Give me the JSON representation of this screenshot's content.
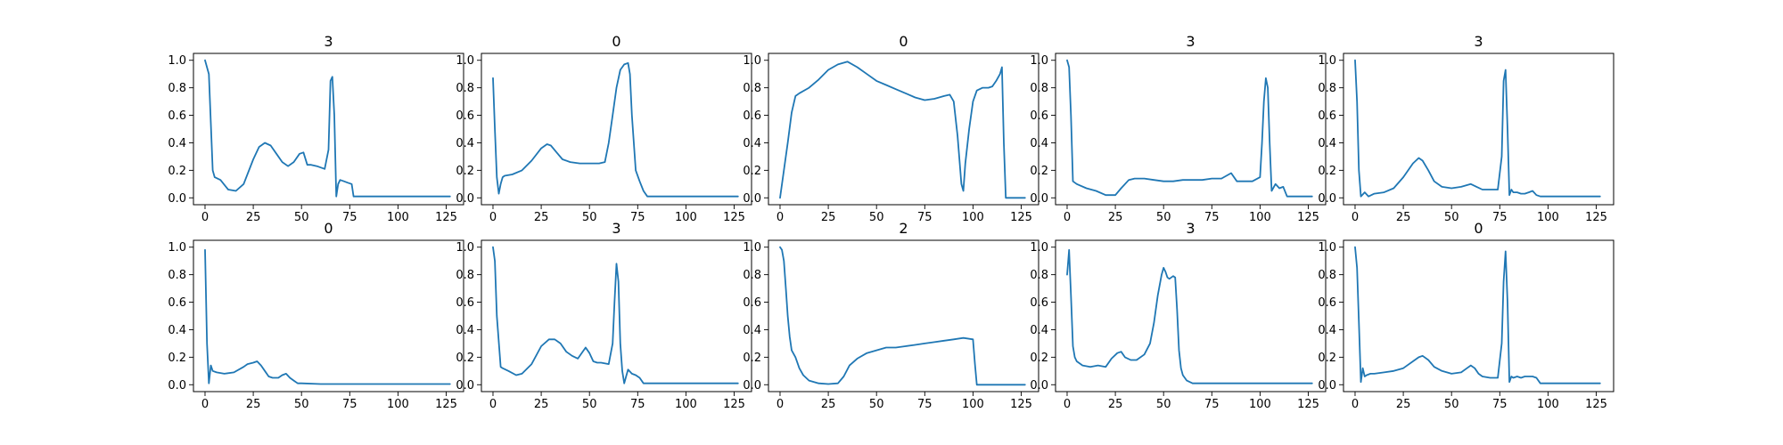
{
  "figure": {
    "line_color": "#1f77b4",
    "grid": false
  },
  "chart_data": [
    {
      "type": "line",
      "title": "3",
      "xlabel": "",
      "ylabel": "",
      "xlim": [
        -6,
        134
      ],
      "ylim": [
        -0.05,
        1.05
      ],
      "xticks": [
        0,
        25,
        50,
        75,
        100,
        125
      ],
      "yticks": [
        0.0,
        0.2,
        0.4,
        0.6,
        0.8,
        1.0
      ],
      "x": [
        0,
        2,
        4,
        5,
        8,
        12,
        16,
        20,
        25,
        28,
        31,
        34,
        37,
        40,
        43,
        46,
        49,
        51,
        53,
        55,
        58,
        62,
        64,
        65,
        66,
        67,
        68,
        69,
        70,
        72,
        74,
        76,
        77,
        78,
        85,
        100,
        115,
        127
      ],
      "y": [
        1.0,
        0.9,
        0.2,
        0.15,
        0.13,
        0.06,
        0.05,
        0.1,
        0.28,
        0.37,
        0.4,
        0.38,
        0.32,
        0.26,
        0.23,
        0.26,
        0.32,
        0.33,
        0.24,
        0.24,
        0.23,
        0.21,
        0.35,
        0.85,
        0.88,
        0.6,
        0.01,
        0.1,
        0.13,
        0.12,
        0.11,
        0.1,
        0.01,
        0.01,
        0.01,
        0.01,
        0.01,
        0.01
      ]
    },
    {
      "type": "line",
      "title": "0",
      "xlabel": "",
      "ylabel": "",
      "xlim": [
        -6,
        134
      ],
      "ylim": [
        -0.05,
        1.05
      ],
      "xticks": [
        0,
        25,
        50,
        75,
        100,
        125
      ],
      "yticks": [
        0.0,
        0.2,
        0.4,
        0.6,
        0.8,
        1.0
      ],
      "x": [
        0,
        1,
        2,
        3,
        4,
        5,
        6,
        10,
        15,
        20,
        25,
        28,
        30,
        33,
        36,
        40,
        45,
        50,
        55,
        58,
        60,
        62,
        64,
        66,
        68,
        70,
        71,
        72,
        74,
        76,
        78,
        80,
        82,
        90,
        100,
        110,
        120,
        127
      ],
      "y": [
        0.87,
        0.5,
        0.15,
        0.03,
        0.1,
        0.15,
        0.16,
        0.17,
        0.2,
        0.27,
        0.36,
        0.39,
        0.38,
        0.33,
        0.28,
        0.26,
        0.25,
        0.25,
        0.25,
        0.26,
        0.4,
        0.6,
        0.8,
        0.93,
        0.97,
        0.98,
        0.9,
        0.6,
        0.2,
        0.12,
        0.05,
        0.01,
        0.01,
        0.01,
        0.01,
        0.01,
        0.01,
        0.01
      ]
    },
    {
      "type": "line",
      "title": "0",
      "xlabel": "",
      "ylabel": "",
      "xlim": [
        -6,
        134
      ],
      "ylim": [
        -0.05,
        1.05
      ],
      "xticks": [
        0,
        25,
        50,
        75,
        100,
        125
      ],
      "yticks": [
        0.0,
        0.2,
        0.4,
        0.6,
        0.8,
        1.0
      ],
      "x": [
        0,
        2,
        4,
        6,
        8,
        10,
        15,
        20,
        25,
        30,
        35,
        40,
        45,
        50,
        55,
        60,
        65,
        70,
        75,
        80,
        85,
        88,
        90,
        92,
        94,
        95,
        96,
        98,
        100,
        102,
        105,
        108,
        110,
        112,
        114,
        115,
        116,
        117,
        120,
        125,
        127
      ],
      "y": [
        0.0,
        0.2,
        0.4,
        0.62,
        0.74,
        0.76,
        0.8,
        0.86,
        0.93,
        0.97,
        0.99,
        0.95,
        0.9,
        0.85,
        0.82,
        0.79,
        0.76,
        0.73,
        0.71,
        0.72,
        0.74,
        0.75,
        0.7,
        0.45,
        0.1,
        0.05,
        0.25,
        0.5,
        0.7,
        0.78,
        0.8,
        0.8,
        0.81,
        0.85,
        0.9,
        0.95,
        0.4,
        0.0,
        0.0,
        0.0,
        0.0
      ]
    },
    {
      "type": "line",
      "title": "3",
      "xlabel": "",
      "ylabel": "",
      "xlim": [
        -6,
        134
      ],
      "ylim": [
        -0.05,
        1.05
      ],
      "xticks": [
        0,
        25,
        50,
        75,
        100,
        125
      ],
      "yticks": [
        0.0,
        0.2,
        0.4,
        0.6,
        0.8,
        1.0
      ],
      "x": [
        0,
        1,
        2,
        3,
        5,
        10,
        15,
        20,
        25,
        28,
        32,
        35,
        40,
        45,
        50,
        55,
        60,
        65,
        70,
        75,
        80,
        85,
        88,
        92,
        96,
        100,
        101,
        102,
        103,
        104,
        105,
        106,
        108,
        110,
        112,
        114,
        116,
        120,
        127
      ],
      "y": [
        1.0,
        0.95,
        0.6,
        0.12,
        0.1,
        0.07,
        0.05,
        0.02,
        0.02,
        0.07,
        0.13,
        0.14,
        0.14,
        0.13,
        0.12,
        0.12,
        0.13,
        0.13,
        0.13,
        0.14,
        0.14,
        0.18,
        0.12,
        0.12,
        0.12,
        0.15,
        0.4,
        0.7,
        0.87,
        0.8,
        0.4,
        0.05,
        0.1,
        0.07,
        0.08,
        0.01,
        0.01,
        0.01,
        0.01
      ]
    },
    {
      "type": "line",
      "title": "3",
      "xlabel": "",
      "ylabel": "",
      "xlim": [
        -6,
        134
      ],
      "ylim": [
        -0.05,
        1.05
      ],
      "xticks": [
        0,
        25,
        50,
        75,
        100,
        125
      ],
      "yticks": [
        0.0,
        0.2,
        0.4,
        0.6,
        0.8,
        1.0
      ],
      "x": [
        0,
        1,
        2,
        3,
        5,
        7,
        10,
        15,
        20,
        25,
        30,
        33,
        35,
        38,
        41,
        45,
        50,
        55,
        60,
        63,
        66,
        70,
        74,
        76,
        77,
        78,
        79,
        80,
        81,
        82,
        84,
        86,
        88,
        90,
        92,
        94,
        96,
        100,
        110,
        127
      ],
      "y": [
        1.0,
        0.7,
        0.2,
        0.01,
        0.04,
        0.01,
        0.03,
        0.04,
        0.07,
        0.15,
        0.25,
        0.29,
        0.27,
        0.2,
        0.12,
        0.08,
        0.07,
        0.08,
        0.1,
        0.08,
        0.06,
        0.06,
        0.06,
        0.3,
        0.85,
        0.93,
        0.5,
        0.02,
        0.06,
        0.04,
        0.04,
        0.03,
        0.03,
        0.04,
        0.05,
        0.02,
        0.01,
        0.01,
        0.01,
        0.01
      ]
    },
    {
      "type": "line",
      "title": "0",
      "xlabel": "",
      "ylabel": "",
      "xlim": [
        -6,
        134
      ],
      "ylim": [
        -0.05,
        1.05
      ],
      "xticks": [
        0,
        25,
        50,
        75,
        100,
        125
      ],
      "yticks": [
        0.0,
        0.2,
        0.4,
        0.6,
        0.8,
        1.0
      ],
      "x": [
        0,
        1,
        2,
        3,
        4,
        6,
        10,
        15,
        20,
        22,
        25,
        27,
        29,
        31,
        33,
        35,
        38,
        40,
        42,
        44,
        46,
        48,
        50,
        60,
        75,
        100,
        127
      ],
      "y": [
        0.98,
        0.3,
        0.01,
        0.14,
        0.1,
        0.09,
        0.08,
        0.09,
        0.13,
        0.15,
        0.16,
        0.17,
        0.14,
        0.1,
        0.06,
        0.05,
        0.05,
        0.07,
        0.08,
        0.05,
        0.03,
        0.01,
        0.01,
        0.005,
        0.005,
        0.005,
        0.005
      ]
    },
    {
      "type": "line",
      "title": "3",
      "xlabel": "",
      "ylabel": "",
      "xlim": [
        -6,
        134
      ],
      "ylim": [
        -0.05,
        1.05
      ],
      "xticks": [
        0,
        25,
        50,
        75,
        100,
        125
      ],
      "yticks": [
        0.0,
        0.2,
        0.4,
        0.6,
        0.8,
        1.0
      ],
      "x": [
        0,
        1,
        2,
        4,
        5,
        8,
        12,
        15,
        20,
        25,
        29,
        32,
        35,
        38,
        41,
        44,
        47,
        48,
        50,
        52,
        54,
        56,
        60,
        62,
        63,
        64,
        65,
        66,
        67,
        68,
        69,
        70,
        72,
        74,
        76,
        78,
        80,
        85,
        100,
        127
      ],
      "y": [
        1.0,
        0.9,
        0.5,
        0.13,
        0.12,
        0.1,
        0.07,
        0.08,
        0.15,
        0.28,
        0.33,
        0.33,
        0.3,
        0.24,
        0.21,
        0.19,
        0.25,
        0.27,
        0.23,
        0.17,
        0.16,
        0.16,
        0.15,
        0.3,
        0.6,
        0.88,
        0.75,
        0.3,
        0.1,
        0.01,
        0.06,
        0.11,
        0.08,
        0.07,
        0.05,
        0.01,
        0.01,
        0.01,
        0.01,
        0.01
      ]
    },
    {
      "type": "line",
      "title": "2",
      "xlabel": "",
      "ylabel": "",
      "xlim": [
        -6,
        134
      ],
      "ylim": [
        -0.05,
        1.05
      ],
      "xticks": [
        0,
        25,
        50,
        75,
        100,
        125
      ],
      "yticks": [
        0.0,
        0.2,
        0.4,
        0.6,
        0.8,
        1.0
      ],
      "x": [
        0,
        1,
        2,
        3,
        4,
        5,
        6,
        8,
        10,
        12,
        15,
        20,
        25,
        30,
        33,
        36,
        40,
        45,
        50,
        55,
        60,
        65,
        70,
        75,
        80,
        85,
        90,
        95,
        100,
        101,
        102,
        104,
        110,
        127
      ],
      "y": [
        1.0,
        0.98,
        0.9,
        0.7,
        0.5,
        0.35,
        0.25,
        0.2,
        0.12,
        0.07,
        0.03,
        0.01,
        0.005,
        0.01,
        0.06,
        0.14,
        0.19,
        0.23,
        0.25,
        0.27,
        0.27,
        0.28,
        0.29,
        0.3,
        0.31,
        0.32,
        0.33,
        0.34,
        0.33,
        0.15,
        0.0,
        0.0,
        0.0,
        0.0
      ]
    },
    {
      "type": "line",
      "title": "3",
      "xlabel": "",
      "ylabel": "",
      "xlim": [
        -6,
        134
      ],
      "ylim": [
        -0.05,
        1.05
      ],
      "xticks": [
        0,
        25,
        50,
        75,
        100,
        125
      ],
      "yticks": [
        0.0,
        0.2,
        0.4,
        0.6,
        0.8,
        1.0
      ],
      "x": [
        0,
        1,
        2,
        3,
        4,
        5,
        8,
        12,
        16,
        20,
        23,
        26,
        28,
        30,
        33,
        36,
        40,
        43,
        45,
        47,
        49,
        50,
        51,
        52,
        53,
        54,
        55,
        56,
        57,
        58,
        59,
        60,
        62,
        65,
        70,
        80,
        100,
        127
      ],
      "y": [
        0.8,
        0.98,
        0.65,
        0.28,
        0.2,
        0.17,
        0.14,
        0.13,
        0.14,
        0.13,
        0.19,
        0.23,
        0.24,
        0.2,
        0.18,
        0.18,
        0.22,
        0.3,
        0.45,
        0.65,
        0.8,
        0.85,
        0.82,
        0.78,
        0.77,
        0.78,
        0.79,
        0.78,
        0.55,
        0.25,
        0.12,
        0.07,
        0.03,
        0.01,
        0.01,
        0.01,
        0.01,
        0.01
      ]
    },
    {
      "type": "line",
      "title": "0",
      "xlabel": "",
      "ylabel": "",
      "xlim": [
        -6,
        134
      ],
      "ylim": [
        -0.05,
        1.05
      ],
      "xticks": [
        0,
        25,
        50,
        75,
        100,
        125
      ],
      "yticks": [
        0.0,
        0.2,
        0.4,
        0.6,
        0.8,
        1.0
      ],
      "x": [
        0,
        1,
        2,
        3,
        4,
        5,
        6,
        8,
        10,
        15,
        20,
        25,
        30,
        33,
        35,
        38,
        41,
        45,
        50,
        55,
        58,
        60,
        62,
        64,
        66,
        70,
        74,
        76,
        77,
        78,
        79,
        80,
        81,
        82,
        84,
        86,
        88,
        90,
        92,
        94,
        96,
        100,
        110,
        127
      ],
      "y": [
        1.0,
        0.85,
        0.45,
        0.02,
        0.12,
        0.06,
        0.07,
        0.08,
        0.08,
        0.09,
        0.1,
        0.12,
        0.17,
        0.2,
        0.21,
        0.18,
        0.13,
        0.1,
        0.08,
        0.09,
        0.12,
        0.14,
        0.12,
        0.08,
        0.06,
        0.05,
        0.05,
        0.3,
        0.75,
        0.97,
        0.6,
        0.02,
        0.06,
        0.05,
        0.06,
        0.05,
        0.06,
        0.06,
        0.06,
        0.05,
        0.01,
        0.01,
        0.01,
        0.01
      ]
    }
  ]
}
